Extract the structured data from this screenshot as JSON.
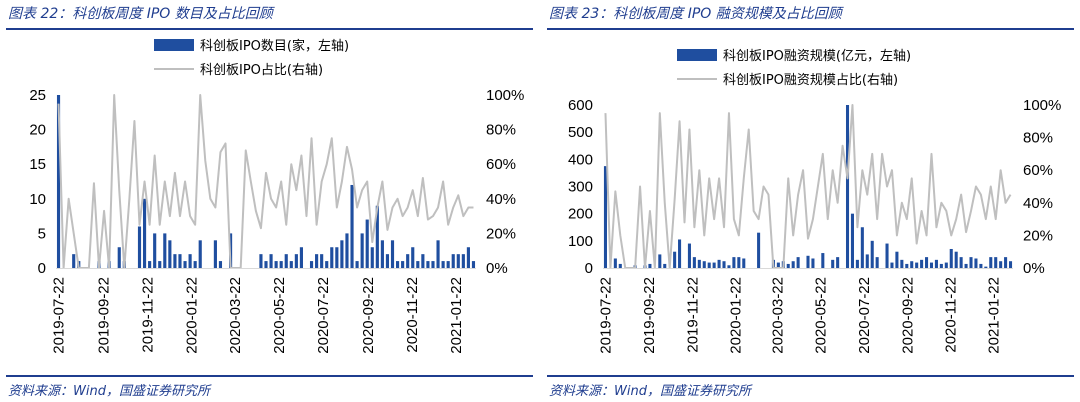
{
  "panels": [
    {
      "title": "图表 22：科创板周度 IPO 数目及占比回顾",
      "source": "资料来源：Wind，国盛证券研究所"
    },
    {
      "title": "图表 23：科创板周度 IPO 融资规模及占比回顾",
      "source": "资料来源：Wind，国盛证券研究所"
    }
  ],
  "colors": {
    "bar": "#1f4e9f",
    "line": "#bfbfbf",
    "accent": "#1f3d8f"
  },
  "chart_data": [
    {
      "type": "bar",
      "title": "图表 22：科创板周度 IPO 数目及占比回顾",
      "x": [
        "2019-07-22",
        "2019-07-29",
        "2019-08-05",
        "2019-08-12",
        "2019-08-19",
        "2019-08-26",
        "2019-09-02",
        "2019-09-09",
        "2019-09-16",
        "2019-09-23",
        "2019-09-30",
        "2019-10-07",
        "2019-10-14",
        "2019-10-21",
        "2019-10-28",
        "2019-11-04",
        "2019-11-11",
        "2019-11-18",
        "2019-11-25",
        "2019-12-02",
        "2019-12-09",
        "2019-12-16",
        "2019-12-23",
        "2019-12-30",
        "2020-01-06",
        "2020-01-13",
        "2020-01-20",
        "2020-01-27",
        "2020-02-03",
        "2020-02-10",
        "2020-02-17",
        "2020-02-24",
        "2020-03-02",
        "2020-03-09",
        "2020-03-16",
        "2020-03-23",
        "2020-03-30",
        "2020-04-06",
        "2020-04-13",
        "2020-04-20",
        "2020-04-27",
        "2020-05-04",
        "2020-05-11",
        "2020-05-18",
        "2020-05-25",
        "2020-06-01",
        "2020-06-08",
        "2020-06-15",
        "2020-06-22",
        "2020-06-29",
        "2020-07-06",
        "2020-07-13",
        "2020-07-20",
        "2020-07-27",
        "2020-08-03",
        "2020-08-10",
        "2020-08-17",
        "2020-08-24",
        "2020-08-31",
        "2020-09-07",
        "2020-09-14",
        "2020-09-21",
        "2020-09-28",
        "2020-10-05",
        "2020-10-12",
        "2020-10-19",
        "2020-10-26",
        "2020-11-02",
        "2020-11-09",
        "2020-11-16",
        "2020-11-23",
        "2020-11-30",
        "2020-12-07",
        "2020-12-14",
        "2020-12-21",
        "2020-12-28",
        "2021-01-04",
        "2021-01-11",
        "2021-01-18",
        "2021-01-25",
        "2021-02-01",
        "2021-02-08",
        "2021-02-15"
      ],
      "xticks": [
        "2019-07-22",
        "2019-09-22",
        "2019-11-22",
        "2020-01-22",
        "2020-03-22",
        "2020-05-22",
        "2020-07-22",
        "2020-09-22",
        "2020-11-22",
        "2021-01-22"
      ],
      "series": [
        {
          "name": "科创板IPO数目(家，左轴)",
          "type": "bar",
          "axis": "left",
          "values": [
            25,
            0,
            0,
            2,
            1,
            0,
            0,
            0,
            1,
            0,
            1,
            0,
            3,
            1,
            0,
            0,
            6,
            10,
            1,
            5,
            1,
            5,
            4,
            2,
            2,
            1,
            2,
            1,
            4,
            0,
            0,
            4,
            1,
            0,
            5,
            0,
            0,
            0,
            0,
            0,
            2,
            1,
            2,
            1,
            1,
            2,
            1,
            2,
            3,
            0,
            1,
            2,
            2,
            1,
            3,
            3,
            4,
            5,
            12,
            1,
            5,
            7,
            3,
            9,
            4,
            2,
            4,
            1,
            1,
            2,
            3,
            1,
            2,
            1,
            1,
            4,
            1,
            1,
            2,
            2,
            2,
            3,
            1
          ]
        },
        {
          "name": "科创板IPO占比(右轴)",
          "type": "line",
          "axis": "right",
          "values": [
            0.95,
            0,
            0.4,
            0.2,
            0,
            0,
            0,
            0.49,
            0,
            0.33,
            0,
            1.0,
            0.45,
            0,
            0.4,
            0.85,
            0.25,
            0.5,
            0.25,
            0.65,
            0.25,
            0.5,
            0.3,
            0.55,
            0.3,
            0.5,
            0.3,
            0.25,
            1.0,
            0.62,
            0.4,
            0.35,
            0.67,
            0.72,
            0,
            0,
            0,
            0.68,
            0.5,
            0.33,
            0.23,
            0.55,
            0.4,
            0.35,
            0.5,
            0.25,
            0.6,
            0.45,
            0.65,
            0.3,
            0.75,
            0.25,
            0.5,
            0.6,
            0.75,
            0.35,
            0.5,
            0.7,
            0.57,
            0.35,
            0.45,
            0.5,
            0.15,
            0.35,
            0.5,
            0.22,
            0.35,
            0.4,
            0.3,
            0.35,
            0.45,
            0.3,
            0.52,
            0.28,
            0.3,
            0.35,
            0.5,
            0.25,
            0.35,
            0.42,
            0.3,
            0.35,
            0.35
          ]
        }
      ],
      "ylim_left": [
        0,
        25
      ],
      "yticks_left": [
        "0",
        "5",
        "10",
        "15",
        "20",
        "25"
      ],
      "ylim_right": [
        0,
        1
      ],
      "yticks_right": [
        "0%",
        "20%",
        "40%",
        "60%",
        "80%",
        "100%"
      ],
      "legend_position": "top-center"
    },
    {
      "type": "bar",
      "title": "图表 23：科创板周度 IPO 融资规模及占比回顾",
      "x": [
        "2019-07-22",
        "2019-07-29",
        "2019-08-05",
        "2019-08-12",
        "2019-08-19",
        "2019-08-26",
        "2019-09-02",
        "2019-09-09",
        "2019-09-16",
        "2019-09-23",
        "2019-09-30",
        "2019-10-07",
        "2019-10-14",
        "2019-10-21",
        "2019-10-28",
        "2019-11-04",
        "2019-11-11",
        "2019-11-18",
        "2019-11-25",
        "2019-12-02",
        "2019-12-09",
        "2019-12-16",
        "2019-12-23",
        "2019-12-30",
        "2020-01-06",
        "2020-01-13",
        "2020-01-20",
        "2020-01-27",
        "2020-02-03",
        "2020-02-10",
        "2020-02-17",
        "2020-02-24",
        "2020-03-02",
        "2020-03-09",
        "2020-03-16",
        "2020-03-23",
        "2020-03-30",
        "2020-04-06",
        "2020-04-13",
        "2020-04-20",
        "2020-04-27",
        "2020-05-04",
        "2020-05-11",
        "2020-05-18",
        "2020-05-25",
        "2020-06-01",
        "2020-06-08",
        "2020-06-15",
        "2020-06-22",
        "2020-06-29",
        "2020-07-06",
        "2020-07-13",
        "2020-07-20",
        "2020-07-27",
        "2020-08-03",
        "2020-08-10",
        "2020-08-17",
        "2020-08-24",
        "2020-08-31",
        "2020-09-07",
        "2020-09-14",
        "2020-09-21",
        "2020-09-28",
        "2020-10-05",
        "2020-10-12",
        "2020-10-19",
        "2020-10-26",
        "2020-11-02",
        "2020-11-09",
        "2020-11-16",
        "2020-11-23",
        "2020-11-30",
        "2020-12-07",
        "2020-12-14",
        "2020-12-21",
        "2020-12-28",
        "2021-01-04",
        "2021-01-11",
        "2021-01-18",
        "2021-01-25",
        "2021-02-01",
        "2021-02-08",
        "2021-02-15"
      ],
      "xticks": [
        "2019-07-22",
        "2019-09-22",
        "2019-11-22",
        "2020-01-22",
        "2020-03-22",
        "2020-05-22",
        "2020-07-22",
        "2020-09-22",
        "2020-11-22",
        "2021-01-22"
      ],
      "series": [
        {
          "name": "科创板IPO融资规模(亿元，左轴)",
          "type": "bar",
          "axis": "left",
          "values": [
            375,
            0,
            35,
            15,
            0,
            0,
            10,
            0,
            10,
            15,
            0,
            50,
            15,
            0,
            60,
            105,
            0,
            90,
            40,
            30,
            25,
            20,
            20,
            30,
            25,
            10,
            40,
            40,
            35,
            0,
            0,
            130,
            0,
            0,
            30,
            20,
            25,
            15,
            25,
            40,
            0,
            45,
            35,
            0,
            55,
            0,
            30,
            40,
            0,
            600,
            200,
            30,
            150,
            50,
            100,
            40,
            0,
            90,
            20,
            60,
            30,
            15,
            25,
            20,
            30,
            40,
            20,
            30,
            15,
            20,
            70,
            60,
            40,
            15,
            40,
            35,
            15,
            5,
            40,
            40,
            25,
            40,
            25
          ]
        },
        {
          "name": "科创板IPO融资规模占比(右轴)",
          "type": "line",
          "axis": "right",
          "values": [
            0.95,
            0,
            0.47,
            0.2,
            0,
            0,
            0,
            0.5,
            0,
            0.35,
            0,
            0.95,
            0.4,
            0,
            0.42,
            0.9,
            0.28,
            0.85,
            0.25,
            0.6,
            0.2,
            0.55,
            0.3,
            0.55,
            0.25,
            0.95,
            0.3,
            0.2,
            0.55,
            0.85,
            0.35,
            0.3,
            0.5,
            0.45,
            0,
            0,
            0,
            0.55,
            0.2,
            0.45,
            0.6,
            0.18,
            0.3,
            0.5,
            0.7,
            0.3,
            0.6,
            0.4,
            0.75,
            0.55,
            1.0,
            0.25,
            0.6,
            0.45,
            0.7,
            0.3,
            0.7,
            0.5,
            0.6,
            0.2,
            0.4,
            0.3,
            0.55,
            0.15,
            0.35,
            0.2,
            0.7,
            0.25,
            0.4,
            0.35,
            0.2,
            0.3,
            0.45,
            0.22,
            0.35,
            0.5,
            0.45,
            0.3,
            0.5,
            0.3,
            0.6,
            0.4,
            0.45
          ]
        }
      ],
      "ylim_left": [
        0,
        600
      ],
      "yticks_left": [
        "0",
        "100",
        "200",
        "300",
        "400",
        "500",
        "600"
      ],
      "ylim_right": [
        0,
        1
      ],
      "yticks_right": [
        "0%",
        "20%",
        "40%",
        "60%",
        "80%",
        "100%"
      ],
      "legend_position": "top-center"
    }
  ]
}
